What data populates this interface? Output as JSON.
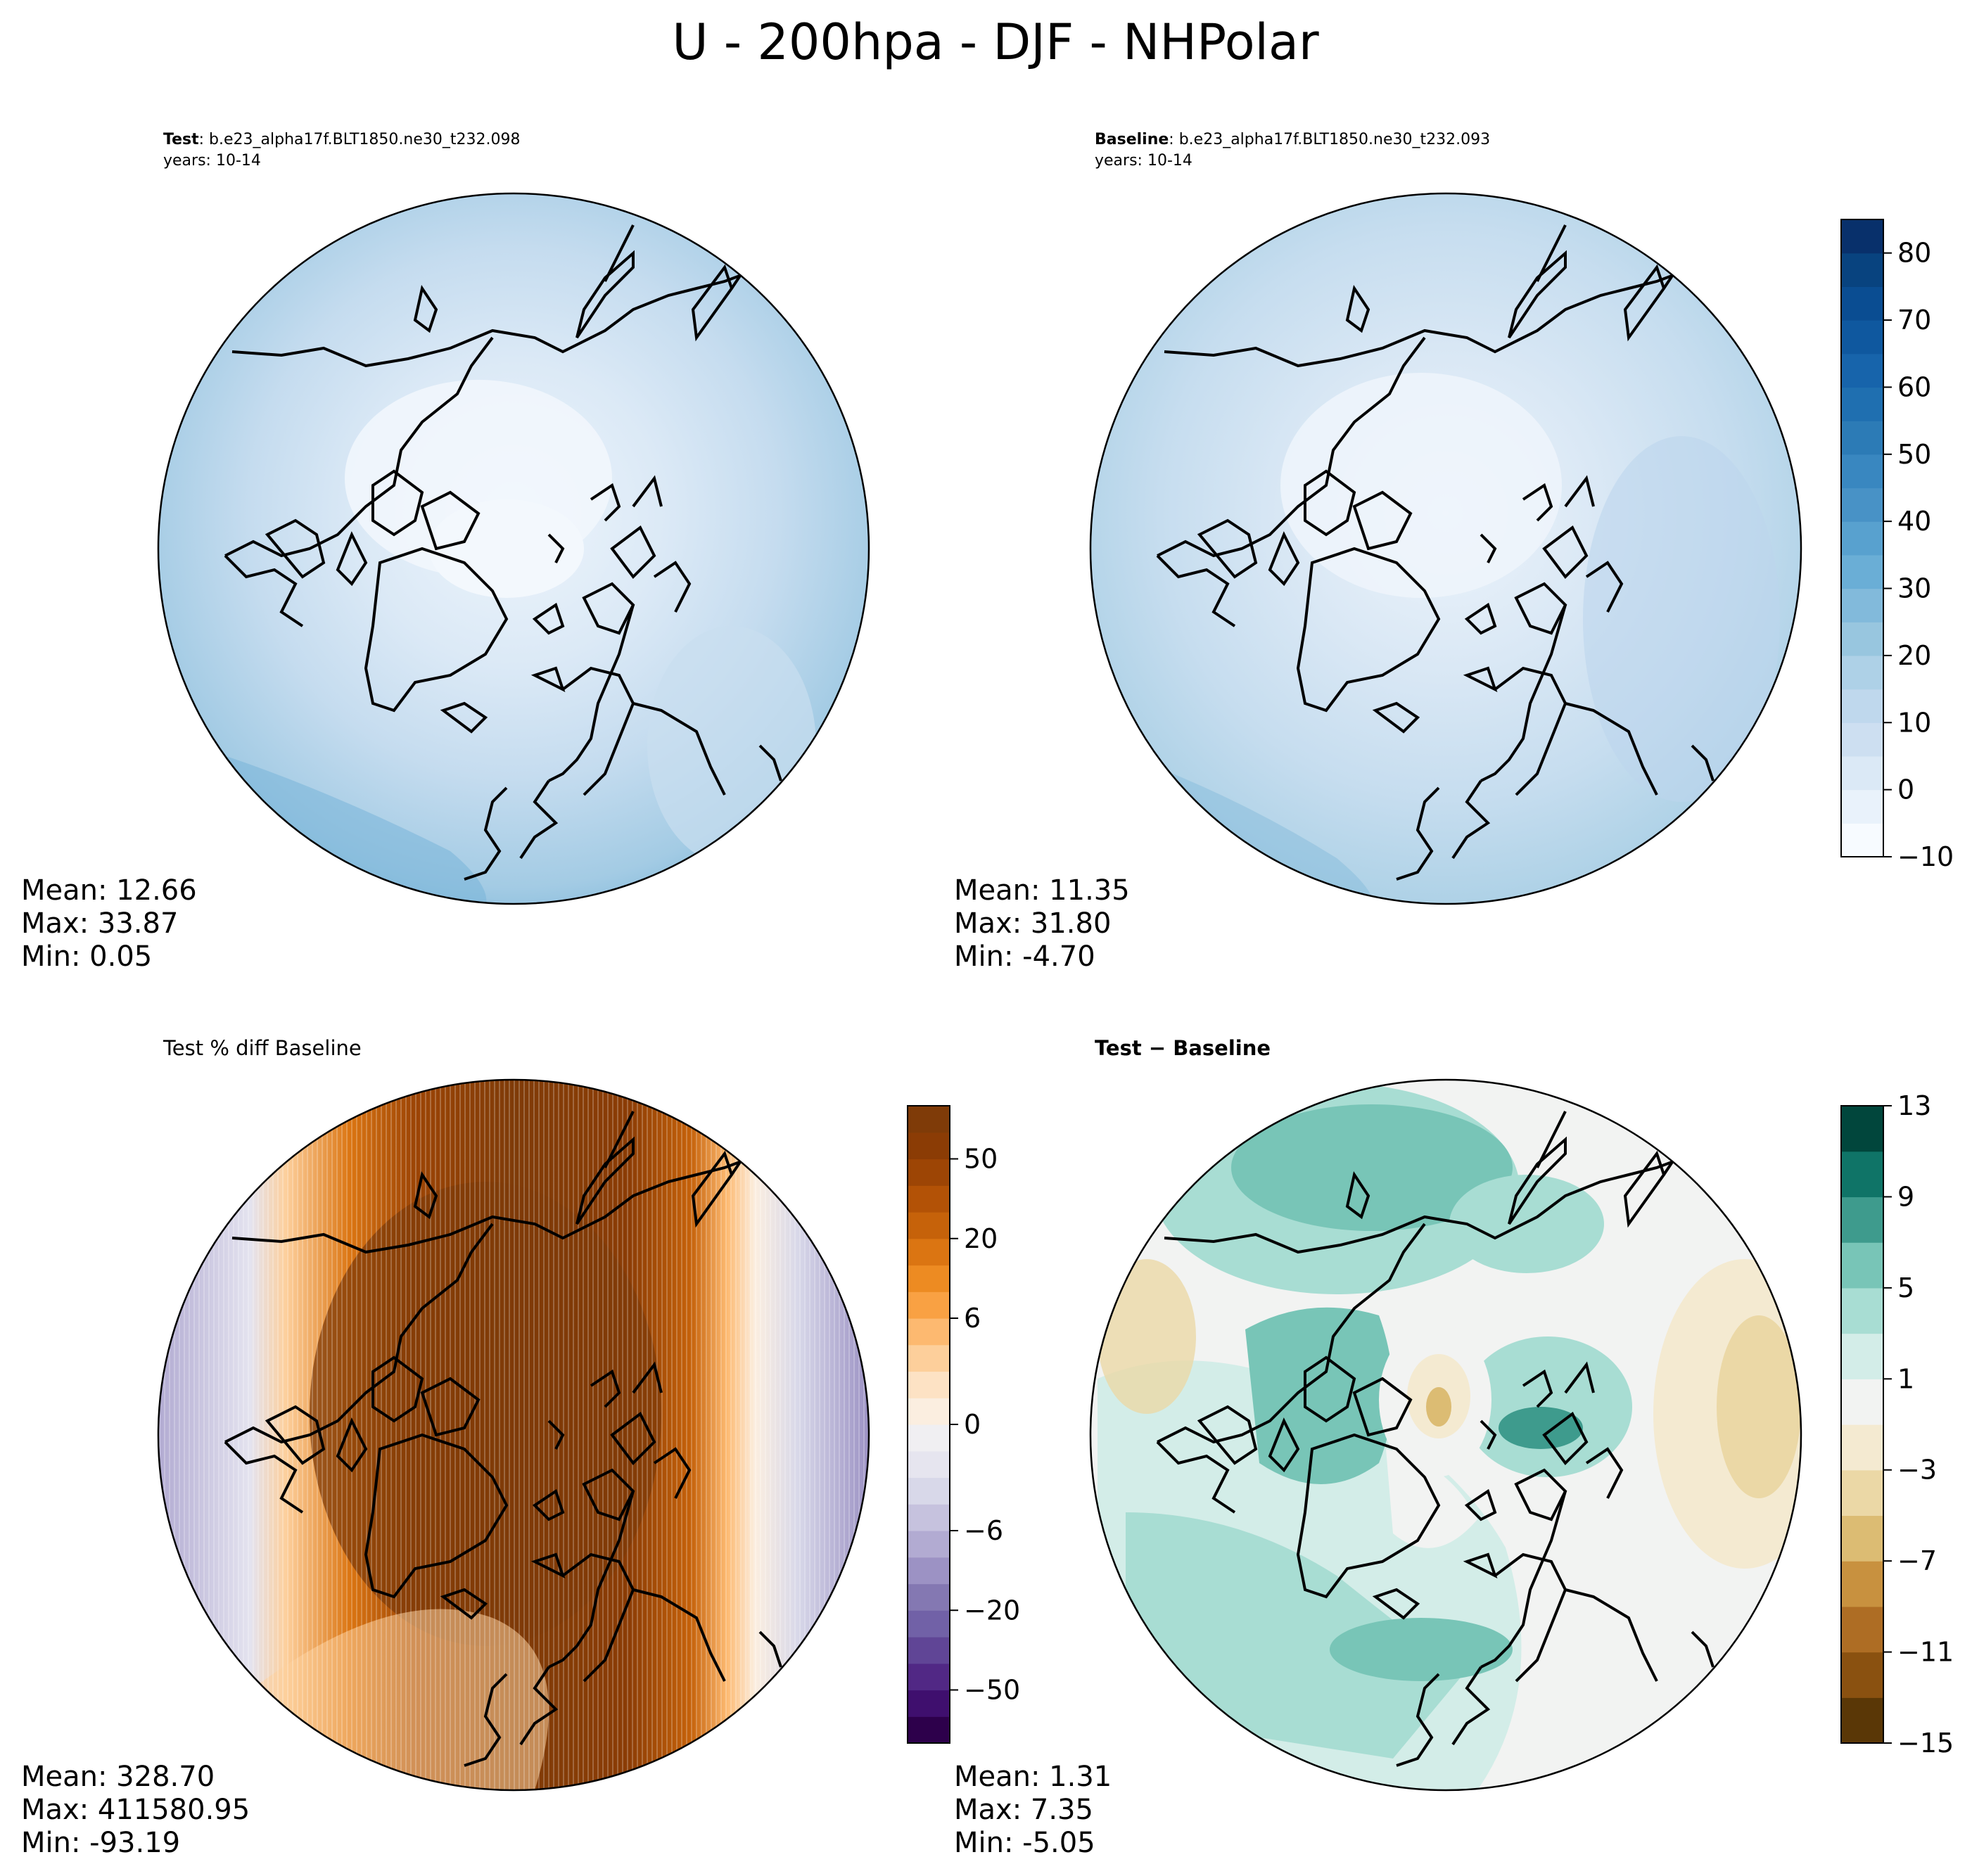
{
  "figure": {
    "title": "U - 200hpa - DJF - NHPolar"
  },
  "panels": [
    {
      "id": "test",
      "title_bold": "Test",
      "title_rest": ": b.e23_alpha17f.BLT1850.ne30_t232.098",
      "subtitle": "years: 10-14",
      "stats": {
        "mean": "Mean: 12.66",
        "max": "Max: 33.87",
        "min": "Min:  0.05"
      },
      "colorbar_ref": "shared"
    },
    {
      "id": "baseline",
      "title_bold": "Baseline",
      "title_rest": ": b.e23_alpha17f.BLT1850.ne30_t232.093",
      "subtitle": "years: 10-14",
      "stats": {
        "mean": "Mean: 11.35",
        "max": "Max: 31.80",
        "min": "Min: -4.70"
      },
      "colorbar_ref": "shared"
    },
    {
      "id": "pctdiff",
      "title_bold": "",
      "title_rest": "Test % diff Baseline",
      "subtitle": "",
      "stats": {
        "mean": "Mean: 328.70",
        "max": "Max: 411580.95",
        "min": "Min: -93.19"
      },
      "colorbar_ref": "pct"
    },
    {
      "id": "diff",
      "title_bold": "Test − Baseline",
      "title_rest": "",
      "subtitle": "",
      "stats": {
        "mean": "Mean:  1.31",
        "max": "Max:  7.35",
        "min": "Min: -5.05"
      },
      "colorbar_ref": "diff"
    }
  ],
  "colorbars": {
    "shared": {
      "range": [
        -10,
        85
      ],
      "ticks": [
        -10,
        0,
        10,
        20,
        30,
        40,
        50,
        60,
        70,
        80
      ],
      "tick_labels": [
        "−10",
        "0",
        "10",
        "20",
        "30",
        "40",
        "50",
        "60",
        "70",
        "80"
      ],
      "levels": 19,
      "colors": [
        "#f7fbff",
        "#e9f2fb",
        "#dbe9f6",
        "#cddff1",
        "#bfd8ed",
        "#aed1e7",
        "#98c6df",
        "#82badb",
        "#6aaed6",
        "#58a1cf",
        "#4892c6",
        "#3987c0",
        "#2c7bb6",
        "#1f6fb0",
        "#1764ab",
        "#0f589f",
        "#0a4d92",
        "#08437f",
        "#08306b"
      ]
    },
    "pct": {
      "ticks": [
        "−100",
        "−75",
        "−50",
        "−40",
        "−30",
        "−20",
        "−10",
        "−8",
        "−6",
        "−4",
        "−2",
        "−1",
        "0",
        "1",
        "2",
        "4",
        "6",
        "8",
        "10",
        "20",
        "30",
        "40",
        "50",
        "75",
        "100"
      ],
      "tick_labels": [
        "−50",
        "−20",
        "−6",
        "0",
        "6",
        "20",
        "50"
      ],
      "tick_values": [
        "−50",
        "−20",
        "−6",
        "0",
        "6",
        "20",
        "50"
      ],
      "colors": [
        "#2d004b",
        "#3f0f6e",
        "#512885",
        "#604596",
        "#7161a7",
        "#8478b2",
        "#9c92c4",
        "#b2abd2",
        "#c6c2de",
        "#d8d8e9",
        "#e6e5ef",
        "#f0eff2",
        "#fbeee0",
        "#fde2c4",
        "#fdcf9b",
        "#fdb970",
        "#f9a143",
        "#ed8b22",
        "#db7512",
        "#c6620a",
        "#b35206",
        "#9d4505",
        "#8b3c05",
        "#7f3b08"
      ]
    },
    "diff": {
      "range": [
        -15,
        13
      ],
      "ticks": [
        -15,
        -11,
        -7,
        -3,
        1,
        5,
        9,
        13
      ],
      "tick_labels": [
        "−15",
        "−11",
        "−7",
        "−3",
        "1",
        "5",
        "9",
        "13"
      ],
      "colors": [
        "#5a3706",
        "#8a5110",
        "#ae6d24",
        "#c8913f",
        "#dcbc73",
        "#ebd8a6",
        "#f4ead1",
        "#f2f3f2",
        "#d3ede8",
        "#a8ddd3",
        "#78c5b7",
        "#3e9b8d",
        "#0f7467",
        "#01463c"
      ]
    }
  }
}
